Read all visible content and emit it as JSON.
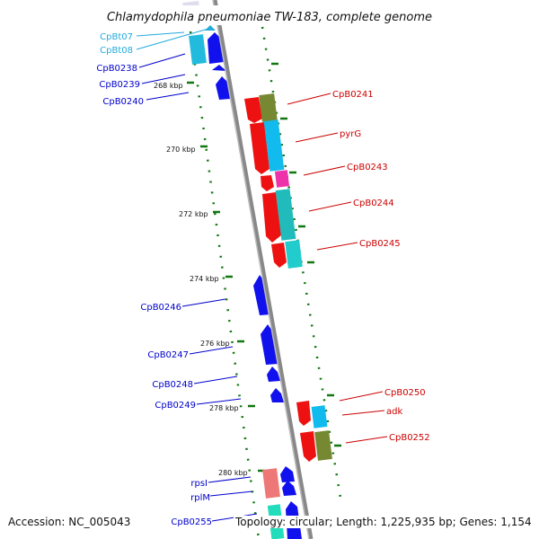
{
  "title": "Chlamydophila pneumoniae TW-183, complete genome",
  "accession": "Accession: NC_005043",
  "topology": "Topology: circular; Length: 1,225,935 bp; Genes: 1,154",
  "colors": {
    "reverse_label": "#0000cc",
    "reverse_light_label": "#22aadd",
    "forward_label": "#cc0000",
    "backbone": "#888888",
    "tick": "#117711"
  },
  "ruler": {
    "ticks": [
      "268 kbp",
      "270 kbp",
      "272 kbp",
      "274 kbp",
      "276 kbp",
      "278 kbp",
      "280 kbp"
    ]
  },
  "genes": {
    "reverse": [
      "CpBt07",
      "CpBt08",
      "CpB0238",
      "CpB0239",
      "CpB0240",
      "CpB0246",
      "CpB0247",
      "CpB0248",
      "CpB0249",
      "rpsI",
      "rplM",
      "CpB0255"
    ],
    "forward": [
      "CpB0241",
      "pyrG",
      "CpB0243",
      "CpB0244",
      "CpB0245",
      "CpB0250",
      "adk",
      "CpB0252"
    ]
  }
}
